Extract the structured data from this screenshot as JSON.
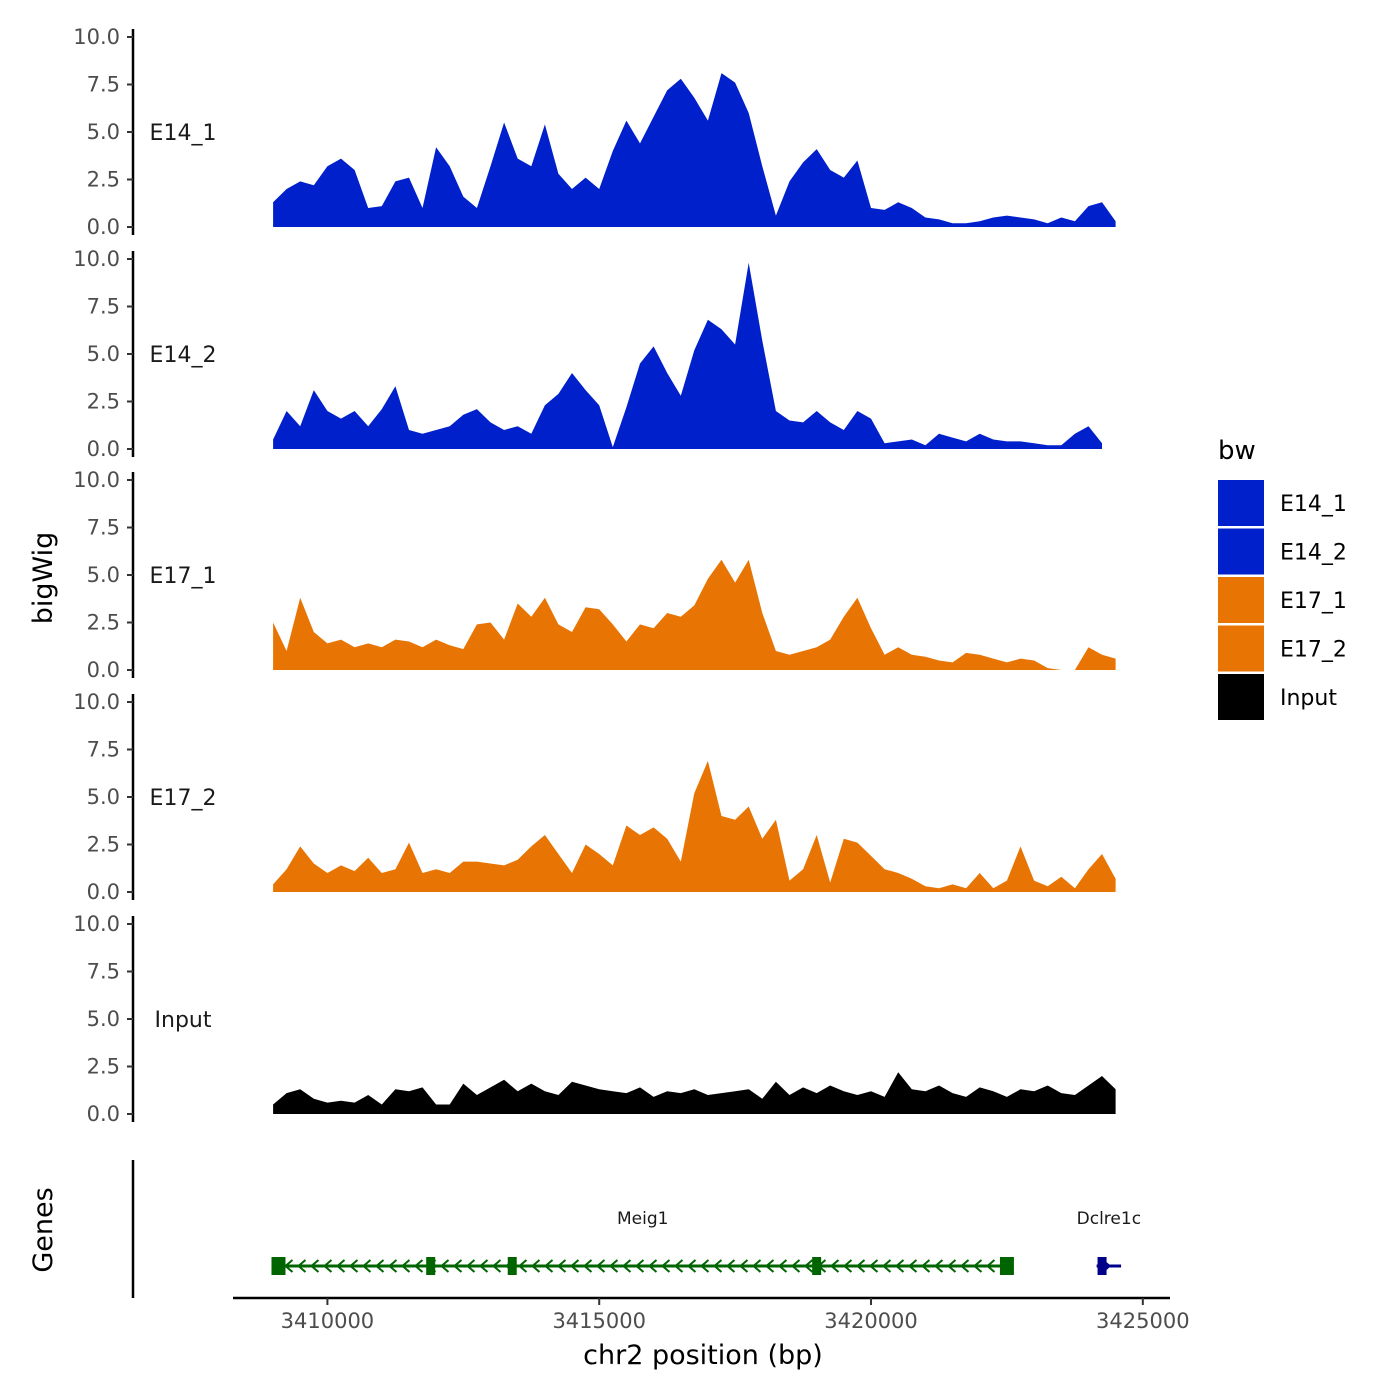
{
  "chart_data": {
    "type": "area",
    "ylabel": "bigWig",
    "xlabel": "chr2 position (bp)",
    "genes_label": "Genes",
    "ylim": [
      0,
      10
    ],
    "y_ticks": [
      {
        "value": 0,
        "label": "0.0"
      },
      {
        "value": 2.5,
        "label": "2.5"
      },
      {
        "value": 5,
        "label": "5.0"
      },
      {
        "value": 7.5,
        "label": "7.5"
      },
      {
        "value": 10,
        "label": "10.0"
      }
    ],
    "x_range": [
      3408300,
      3425500
    ],
    "x_ticks": [
      {
        "value": 3410000,
        "label": "3410000"
      },
      {
        "value": 3415000,
        "label": "3415000"
      },
      {
        "value": 3420000,
        "label": "3420000"
      },
      {
        "value": 3425000,
        "label": "3425000"
      }
    ],
    "legend": {
      "title": "bw",
      "position": "right",
      "entries": [
        {
          "label": "E14_1",
          "color": "#0020CC"
        },
        {
          "label": "E14_2",
          "color": "#0020CC"
        },
        {
          "label": "E17_1",
          "color": "#E87503"
        },
        {
          "label": "E17_2",
          "color": "#E87503"
        },
        {
          "label": "Input",
          "color": "#000000"
        }
      ]
    },
    "series": [
      {
        "name": "E14_1",
        "color": "#0020CC",
        "x": [
          3409000,
          3409250,
          3409500,
          3409750,
          3410000,
          3410250,
          3410500,
          3410750,
          3411000,
          3411250,
          3411500,
          3411750,
          3412000,
          3412250,
          3412500,
          3412750,
          3413000,
          3413250,
          3413500,
          3413750,
          3414000,
          3414250,
          3414500,
          3414750,
          3415000,
          3415250,
          3415500,
          3415750,
          3416000,
          3416250,
          3416500,
          3416750,
          3417000,
          3417250,
          3417500,
          3417750,
          3418000,
          3418250,
          3418500,
          3418750,
          3419000,
          3419250,
          3419500,
          3419750,
          3420000,
          3420250,
          3420500,
          3420750,
          3421000,
          3421250,
          3421500,
          3421750,
          3422000,
          3422250,
          3422500,
          3422750,
          3423000,
          3423250,
          3423500,
          3423750,
          3424000,
          3424250,
          3424500
        ],
        "y": [
          1.3,
          2.0,
          2.4,
          2.2,
          3.2,
          3.6,
          3.0,
          1.0,
          1.1,
          2.4,
          2.6,
          1.0,
          4.2,
          3.2,
          1.6,
          1.0,
          3.2,
          5.5,
          3.6,
          3.2,
          5.4,
          2.8,
          2.0,
          2.6,
          2.0,
          4.0,
          5.6,
          4.4,
          5.8,
          7.2,
          7.8,
          6.8,
          5.6,
          8.1,
          7.6,
          6.0,
          3.2,
          0.6,
          2.4,
          3.4,
          4.1,
          3.0,
          2.6,
          3.5,
          1.0,
          0.9,
          1.3,
          1.0,
          0.5,
          0.4,
          0.2,
          0.2,
          0.3,
          0.5,
          0.6,
          0.5,
          0.4,
          0.2,
          0.5,
          0.3,
          1.1,
          1.3,
          0.3
        ]
      },
      {
        "name": "E14_2",
        "color": "#0020CC",
        "x": [
          3409000,
          3409250,
          3409500,
          3409750,
          3410000,
          3410250,
          3410500,
          3410750,
          3411000,
          3411250,
          3411500,
          3411750,
          3412000,
          3412250,
          3412500,
          3412750,
          3413000,
          3413250,
          3413500,
          3413750,
          3414000,
          3414250,
          3414500,
          3414750,
          3415000,
          3415250,
          3415500,
          3415750,
          3416000,
          3416250,
          3416500,
          3416750,
          3417000,
          3417250,
          3417500,
          3417750,
          3418000,
          3418250,
          3418500,
          3418750,
          3419000,
          3419250,
          3419500,
          3419750,
          3420000,
          3420250,
          3420500,
          3420750,
          3421000,
          3421250,
          3421500,
          3421750,
          3422000,
          3422250,
          3422500,
          3422750,
          3423000,
          3423250,
          3423500,
          3423750,
          3424000,
          3424250
        ],
        "y": [
          0.5,
          2.0,
          1.2,
          3.1,
          2.0,
          1.6,
          2.0,
          1.2,
          2.1,
          3.3,
          1.0,
          0.8,
          1.0,
          1.2,
          1.8,
          2.1,
          1.4,
          1.0,
          1.2,
          0.8,
          2.3,
          2.9,
          4.0,
          3.1,
          2.3,
          0.1,
          2.2,
          4.5,
          5.4,
          4.0,
          2.8,
          5.2,
          6.8,
          6.3,
          5.5,
          9.8,
          5.7,
          2.0,
          1.5,
          1.4,
          2.0,
          1.4,
          1.0,
          2.0,
          1.6,
          0.3,
          0.4,
          0.5,
          0.2,
          0.8,
          0.6,
          0.4,
          0.8,
          0.5,
          0.4,
          0.4,
          0.3,
          0.2,
          0.2,
          0.8,
          1.2,
          0.3
        ]
      },
      {
        "name": "E17_1",
        "color": "#E87503",
        "x": [
          3409000,
          3409250,
          3409500,
          3409750,
          3410000,
          3410250,
          3410500,
          3410750,
          3411000,
          3411250,
          3411500,
          3411750,
          3412000,
          3412250,
          3412500,
          3412750,
          3413000,
          3413250,
          3413500,
          3413750,
          3414000,
          3414250,
          3414500,
          3414750,
          3415000,
          3415250,
          3415500,
          3415750,
          3416000,
          3416250,
          3416500,
          3416750,
          3417000,
          3417250,
          3417500,
          3417750,
          3418000,
          3418250,
          3418500,
          3418750,
          3419000,
          3419250,
          3419500,
          3419750,
          3420000,
          3420250,
          3420500,
          3420750,
          3421000,
          3421250,
          3421500,
          3421750,
          3422000,
          3422250,
          3422500,
          3422750,
          3423000,
          3423250,
          3423500,
          3423750,
          3424000,
          3424250,
          3424500
        ],
        "y": [
          2.5,
          1.0,
          3.8,
          2.0,
          1.4,
          1.6,
          1.2,
          1.4,
          1.2,
          1.6,
          1.5,
          1.2,
          1.6,
          1.3,
          1.1,
          2.4,
          2.5,
          1.6,
          3.5,
          2.8,
          3.8,
          2.4,
          2.0,
          3.3,
          3.2,
          2.4,
          1.5,
          2.4,
          2.2,
          3.0,
          2.8,
          3.4,
          4.8,
          5.8,
          4.6,
          5.8,
          3.0,
          1.0,
          0.8,
          1.0,
          1.2,
          1.6,
          2.8,
          3.8,
          2.2,
          0.8,
          1.2,
          0.8,
          0.7,
          0.5,
          0.4,
          0.9,
          0.8,
          0.6,
          0.4,
          0.6,
          0.5,
          0.1,
          0.0,
          0.0,
          1.2,
          0.8,
          0.6
        ]
      },
      {
        "name": "E17_2",
        "color": "#E87503",
        "x": [
          3409000,
          3409250,
          3409500,
          3409750,
          3410000,
          3410250,
          3410500,
          3410750,
          3411000,
          3411250,
          3411500,
          3411750,
          3412000,
          3412250,
          3412500,
          3412750,
          3413000,
          3413250,
          3413500,
          3413750,
          3414000,
          3414250,
          3414500,
          3414750,
          3415000,
          3415250,
          3415500,
          3415750,
          3416000,
          3416250,
          3416500,
          3416750,
          3417000,
          3417250,
          3417500,
          3417750,
          3418000,
          3418250,
          3418500,
          3418750,
          3419000,
          3419250,
          3419500,
          3419750,
          3420000,
          3420250,
          3420500,
          3420750,
          3421000,
          3421250,
          3421500,
          3421750,
          3422000,
          3422250,
          3422500,
          3422750,
          3423000,
          3423250,
          3423500,
          3423750,
          3424000,
          3424250,
          3424500
        ],
        "y": [
          0.4,
          1.2,
          2.4,
          1.5,
          1.0,
          1.4,
          1.1,
          1.8,
          1.0,
          1.2,
          2.6,
          1.0,
          1.2,
          1.0,
          1.6,
          1.6,
          1.5,
          1.4,
          1.7,
          2.4,
          3.0,
          2.0,
          1.0,
          2.5,
          2.0,
          1.4,
          3.5,
          3.0,
          3.4,
          2.8,
          1.6,
          5.2,
          6.9,
          4.0,
          3.8,
          4.5,
          2.8,
          3.8,
          0.6,
          1.2,
          3.0,
          0.5,
          2.8,
          2.6,
          1.9,
          1.2,
          1.0,
          0.7,
          0.3,
          0.2,
          0.4,
          0.2,
          1.0,
          0.2,
          0.6,
          2.4,
          0.6,
          0.3,
          0.8,
          0.2,
          1.2,
          2.0,
          0.7
        ]
      },
      {
        "name": "Input",
        "color": "#000000",
        "x": [
          3409000,
          3409250,
          3409500,
          3409750,
          3410000,
          3410250,
          3410500,
          3410750,
          3411000,
          3411250,
          3411500,
          3411750,
          3412000,
          3412250,
          3412500,
          3412750,
          3413000,
          3413250,
          3413500,
          3413750,
          3414000,
          3414250,
          3414500,
          3414750,
          3415000,
          3415250,
          3415500,
          3415750,
          3416000,
          3416250,
          3416500,
          3416750,
          3417000,
          3417250,
          3417500,
          3417750,
          3418000,
          3418250,
          3418500,
          3418750,
          3419000,
          3419250,
          3419500,
          3419750,
          3420000,
          3420250,
          3420500,
          3420750,
          3421000,
          3421250,
          3421500,
          3421750,
          3422000,
          3422250,
          3422500,
          3422750,
          3423000,
          3423250,
          3423500,
          3423750,
          3424000,
          3424250,
          3424500
        ],
        "y": [
          0.5,
          1.1,
          1.3,
          0.8,
          0.6,
          0.7,
          0.6,
          1.0,
          0.5,
          1.3,
          1.2,
          1.4,
          0.5,
          0.5,
          1.6,
          1.0,
          1.4,
          1.8,
          1.2,
          1.6,
          1.2,
          1.0,
          1.7,
          1.5,
          1.3,
          1.2,
          1.1,
          1.4,
          0.9,
          1.2,
          1.1,
          1.3,
          1.0,
          1.1,
          1.2,
          1.3,
          0.8,
          1.7,
          1.0,
          1.4,
          1.1,
          1.5,
          1.2,
          1.0,
          1.2,
          0.9,
          2.2,
          1.3,
          1.2,
          1.5,
          1.1,
          0.9,
          1.4,
          1.2,
          0.9,
          1.3,
          1.2,
          1.5,
          1.1,
          1.0,
          1.5,
          2.0,
          1.3
        ]
      }
    ],
    "genes": [
      {
        "name": "Meig1",
        "strand": "-",
        "color": "#006400",
        "start": 3409100,
        "end": 3422500,
        "exons": [
          3409100,
          3411900,
          3413400,
          3419000,
          3422500
        ]
      },
      {
        "name": "Dclre1c",
        "strand": "+",
        "color": "#00008B",
        "start": 3424150,
        "end": 3424600,
        "exons": [
          3424250
        ]
      }
    ]
  }
}
